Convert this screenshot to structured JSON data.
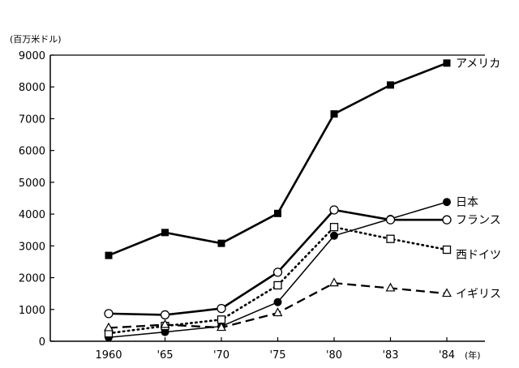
{
  "chart_data": {
    "type": "line",
    "title": "",
    "ylabel": "(百万米ドル)",
    "xlabel": "(年)",
    "categories": [
      "1960",
      "'65",
      "'70",
      "'75",
      "'80",
      "'83",
      "'84"
    ],
    "ylim": [
      0,
      9000
    ],
    "yticks": [
      0,
      1000,
      2000,
      3000,
      4000,
      5000,
      6000,
      7000,
      8000,
      9000
    ],
    "grid": false,
    "series": [
      {
        "name": "アメリカ",
        "marker": "square-filled",
        "line": "solid-thick",
        "values": [
          2700,
          3420,
          3080,
          4020,
          7150,
          8060,
          8750
        ]
      },
      {
        "name": "日本",
        "marker": "circle-filled",
        "line": "solid",
        "values": [
          120,
          290,
          470,
          1230,
          3320,
          3850,
          4380
        ]
      },
      {
        "name": "フランス",
        "marker": "circle-open",
        "line": "solid-thick",
        "values": [
          870,
          830,
          1030,
          2170,
          4130,
          3820,
          3820
        ]
      },
      {
        "name": "西ドイツ",
        "marker": "square-open",
        "line": "dotted",
        "values": [
          250,
          480,
          680,
          1760,
          3590,
          3220,
          2880
        ]
      },
      {
        "name": "イギリス",
        "marker": "triangle-open",
        "line": "dashed",
        "values": [
          420,
          520,
          430,
          890,
          1830,
          1670,
          1500
        ]
      }
    ]
  }
}
